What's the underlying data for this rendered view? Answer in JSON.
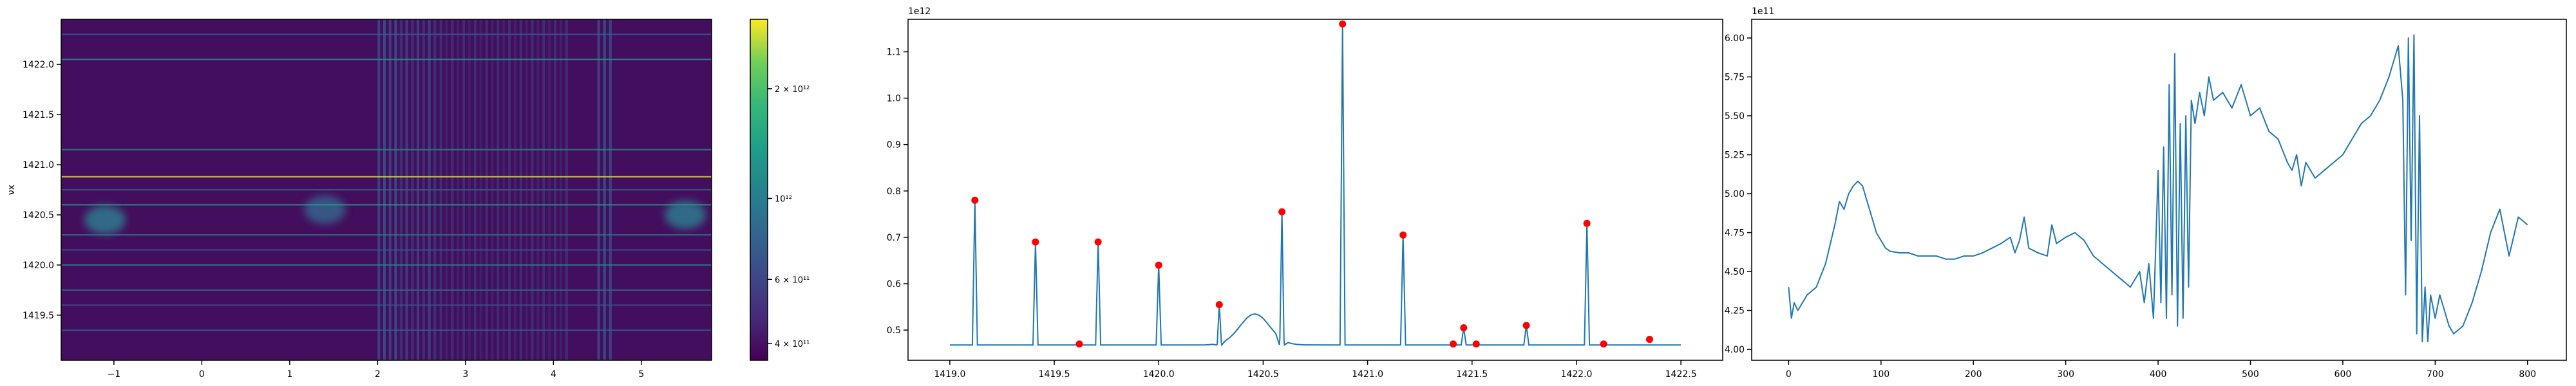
{
  "chart_data": [
    {
      "type": "heatmap",
      "title": "",
      "xlabel": "",
      "ylabel": "νx",
      "xlim": [
        -1.6,
        5.8
      ],
      "ylim": [
        1419.05,
        1422.45
      ],
      "xticks": [
        -1,
        0,
        1,
        2,
        3,
        4,
        5
      ],
      "xtick_labels": [
        "−1",
        "0",
        "1",
        "2",
        "3",
        "4",
        "5"
      ],
      "yticks": [
        1419.5,
        1420.0,
        1420.5,
        1421.0,
        1421.5,
        1422.0
      ],
      "ytick_labels": [
        "1419.5",
        "1420.0",
        "1420.5",
        "1421.0",
        "1421.5",
        "1422.0"
      ],
      "colormap": "viridis",
      "color_scale": "log",
      "colorbar": {
        "ticks": [
          400000000000.0,
          600000000000.0,
          1000000000000.0,
          2000000000000.0
        ],
        "tick_labels": [
          "4 × 10¹¹",
          "6 × 10¹¹",
          "10¹²",
          "2 × 10¹²"
        ],
        "range": [
          360000000000.0,
          3100000000000.0
        ]
      },
      "horizontal_lines": [
        {
          "y": 1419.35,
          "strength": 0.3
        },
        {
          "y": 1419.6,
          "strength": 0.25
        },
        {
          "y": 1419.75,
          "strength": 0.35
        },
        {
          "y": 1420.0,
          "strength": 0.45
        },
        {
          "y": 1420.15,
          "strength": 0.28
        },
        {
          "y": 1420.3,
          "strength": 0.4
        },
        {
          "y": 1420.6,
          "strength": 0.55
        },
        {
          "y": 1420.75,
          "strength": 0.3
        },
        {
          "y": 1420.88,
          "strength": 0.95
        },
        {
          "y": 1421.15,
          "strength": 0.45
        },
        {
          "y": 1422.05,
          "strength": 0.5
        },
        {
          "y": 1422.3,
          "strength": 0.28
        }
      ],
      "vertical_bands": [
        {
          "x": 2.0,
          "width": 0.7,
          "shade": 0.25
        },
        {
          "x": 4.5,
          "width": 0.2,
          "shade": 0.25
        },
        {
          "x": 2.25,
          "width": 1.95,
          "shade": 0.12
        }
      ],
      "blobs": [
        {
          "x": -1.1,
          "y": 1420.45,
          "strength": 0.7
        },
        {
          "x": 1.4,
          "y": 1420.55,
          "strength": 0.55
        },
        {
          "x": 5.5,
          "y": 1420.5,
          "strength": 0.7
        }
      ]
    },
    {
      "type": "line",
      "title": "",
      "xlabel": "",
      "ylabel": "",
      "offset_text": "1e12",
      "xlim": [
        1418.8,
        1422.7
      ],
      "ylim": [
        0.435,
        1.17
      ],
      "xticks": [
        1419.0,
        1419.5,
        1420.0,
        1420.5,
        1421.0,
        1421.5,
        1422.0,
        1422.5
      ],
      "xtick_labels": [
        "1419.0",
        "1419.5",
        "1420.0",
        "1420.5",
        "1421.0",
        "1421.5",
        "1422.0",
        "1422.5"
      ],
      "yticks": [
        0.5,
        0.6,
        0.7,
        0.8,
        0.9,
        1.0,
        1.1
      ],
      "ytick_labels": [
        "0.5",
        "0.6",
        "0.7",
        "0.8",
        "0.9",
        "1.0",
        "1.1"
      ],
      "line_color": "#1f77b4",
      "marker_color": "#ff0000",
      "baseline": 0.468,
      "x_start": 1419.0,
      "x_end": 1422.5,
      "peaks": [
        {
          "x": 1419.12,
          "y": 0.78
        },
        {
          "x": 1419.41,
          "y": 0.69
        },
        {
          "x": 1419.62,
          "y": 0.47
        },
        {
          "x": 1419.71,
          "y": 0.69
        },
        {
          "x": 1420.0,
          "y": 0.64
        },
        {
          "x": 1420.29,
          "y": 0.555
        },
        {
          "x": 1420.59,
          "y": 0.755
        },
        {
          "x": 1420.88,
          "y": 1.16
        },
        {
          "x": 1421.17,
          "y": 0.705
        },
        {
          "x": 1421.41,
          "y": 0.47
        },
        {
          "x": 1421.46,
          "y": 0.505
        },
        {
          "x": 1421.52,
          "y": 0.47
        },
        {
          "x": 1421.76,
          "y": 0.51
        },
        {
          "x": 1422.05,
          "y": 0.73
        },
        {
          "x": 1422.13,
          "y": 0.47
        },
        {
          "x": 1422.35,
          "y": 0.48
        }
      ],
      "hump": {
        "x": 1420.46,
        "height": 0.535
      }
    },
    {
      "type": "line",
      "title": "",
      "xlabel": "",
      "ylabel": "",
      "offset_text": "1e11",
      "xlim": [
        -40,
        842
      ],
      "ylim": [
        3.93,
        6.12
      ],
      "xticks": [
        0,
        100,
        200,
        300,
        400,
        500,
        600,
        700,
        800
      ],
      "xtick_labels": [
        "0",
        "100",
        "200",
        "300",
        "400",
        "500",
        "600",
        "700",
        "800"
      ],
      "yticks": [
        4.0,
        4.25,
        4.5,
        4.75,
        5.0,
        5.25,
        5.5,
        5.75,
        6.0
      ],
      "ytick_labels": [
        "4.00",
        "4.25",
        "4.50",
        "4.75",
        "5.00",
        "5.25",
        "5.50",
        "5.75",
        "6.00"
      ],
      "line_color": "#1f77b4",
      "x": [
        0,
        3,
        6,
        10,
        15,
        20,
        30,
        40,
        50,
        55,
        60,
        65,
        70,
        75,
        80,
        85,
        90,
        95,
        100,
        105,
        110,
        120,
        130,
        140,
        150,
        160,
        170,
        180,
        190,
        200,
        210,
        220,
        230,
        240,
        245,
        250,
        255,
        260,
        270,
        280,
        285,
        290,
        300,
        310,
        320,
        330,
        340,
        350,
        360,
        370,
        380,
        385,
        390,
        395,
        400,
        403,
        406,
        409,
        412,
        415,
        418,
        421,
        424,
        427,
        430,
        433,
        436,
        440,
        445,
        450,
        455,
        460,
        470,
        480,
        490,
        500,
        510,
        520,
        530,
        540,
        545,
        550,
        555,
        560,
        565,
        570,
        580,
        590,
        600,
        610,
        620,
        630,
        640,
        650,
        660,
        665,
        668,
        671,
        674,
        677,
        680,
        683,
        686,
        689,
        692,
        695,
        700,
        705,
        710,
        715,
        720,
        730,
        740,
        750,
        760,
        770,
        780,
        790,
        800
      ],
      "y": [
        4.4,
        4.2,
        4.3,
        4.25,
        4.3,
        4.35,
        4.4,
        4.55,
        4.8,
        4.95,
        4.9,
        5.0,
        5.05,
        5.08,
        5.05,
        4.95,
        4.85,
        4.75,
        4.7,
        4.65,
        4.63,
        4.62,
        4.62,
        4.6,
        4.6,
        4.6,
        4.58,
        4.58,
        4.6,
        4.6,
        4.62,
        4.65,
        4.68,
        4.72,
        4.62,
        4.7,
        4.85,
        4.65,
        4.62,
        4.6,
        4.8,
        4.68,
        4.72,
        4.75,
        4.7,
        4.6,
        4.55,
        4.5,
        4.45,
        4.4,
        4.5,
        4.3,
        4.55,
        4.2,
        5.15,
        4.3,
        5.3,
        4.2,
        5.7,
        4.35,
        5.9,
        4.15,
        5.45,
        4.2,
        5.5,
        4.4,
        5.6,
        5.45,
        5.65,
        5.5,
        5.75,
        5.6,
        5.65,
        5.55,
        5.7,
        5.5,
        5.55,
        5.4,
        5.35,
        5.2,
        5.15,
        5.25,
        5.05,
        5.2,
        5.15,
        5.1,
        5.15,
        5.2,
        5.25,
        5.35,
        5.45,
        5.5,
        5.6,
        5.75,
        5.95,
        5.6,
        4.35,
        6.0,
        4.7,
        6.02,
        4.1,
        5.5,
        4.05,
        4.4,
        4.05,
        4.35,
        4.2,
        4.35,
        4.25,
        4.15,
        4.1,
        4.15,
        4.3,
        4.5,
        4.75,
        4.9,
        4.6,
        4.85,
        4.8
      ]
    }
  ]
}
